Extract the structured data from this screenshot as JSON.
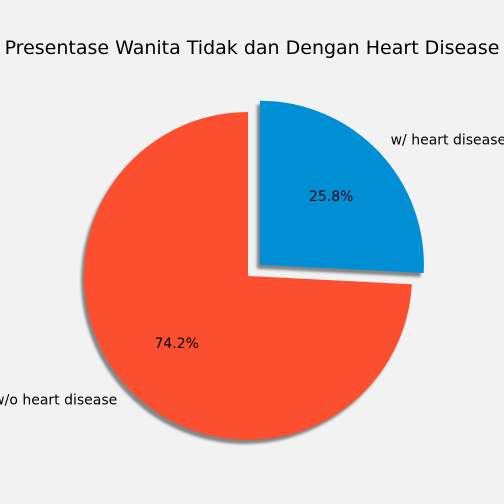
{
  "chart_data": {
    "type": "pie",
    "title": "Presentase Wanita Tidak dan Dengan Heart Disease",
    "slices": [
      {
        "label": "w/ heart disease",
        "value": 25.8,
        "pct_label": "25.8%",
        "color": "#008fd5",
        "exploded": true
      },
      {
        "label": "w/o heart disease",
        "value": 74.2,
        "pct_label": "74.2%",
        "color": "#fc4f30",
        "exploded": false
      }
    ],
    "start_angle_deg": 90,
    "direction": "clockwise",
    "shadow": true,
    "background": "#f2f2f2"
  }
}
